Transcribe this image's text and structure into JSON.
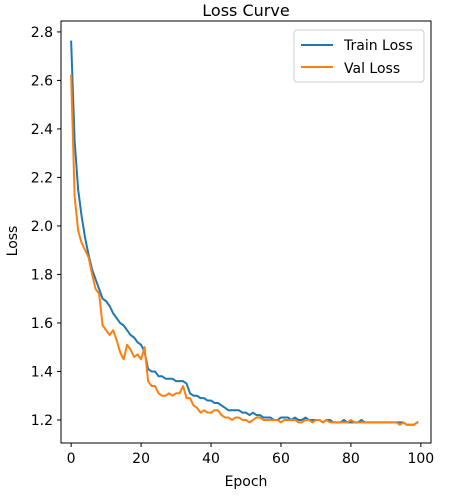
{
  "chart_data": {
    "type": "line",
    "title": "Loss Curve",
    "xlabel": "Epoch",
    "ylabel": "Loss",
    "xlim": [
      -2.9,
      102.9
    ],
    "ylim": [
      1.105,
      2.845
    ],
    "xticks": [
      0,
      20,
      40,
      60,
      80,
      100
    ],
    "yticks": [
      1.2,
      1.4,
      1.6,
      1.8,
      2.0,
      2.2,
      2.4,
      2.6,
      2.8
    ],
    "xtick_labels": [
      "0",
      "20",
      "40",
      "60",
      "80",
      "100"
    ],
    "ytick_labels": [
      "1.2",
      "1.4",
      "1.6",
      "1.8",
      "2.0",
      "2.2",
      "2.4",
      "2.6",
      "2.8"
    ],
    "grid": false,
    "legend_position": "top-right",
    "series": [
      {
        "name": "Train Loss",
        "color": "#1f77b4",
        "x": [
          0,
          1,
          2,
          3,
          4,
          5,
          6,
          7,
          8,
          9,
          10,
          11,
          12,
          13,
          14,
          15,
          16,
          17,
          18,
          19,
          20,
          21,
          22,
          23,
          24,
          25,
          26,
          27,
          28,
          29,
          30,
          31,
          32,
          33,
          34,
          35,
          36,
          37,
          38,
          39,
          40,
          41,
          42,
          43,
          44,
          45,
          46,
          47,
          48,
          49,
          50,
          51,
          52,
          53,
          54,
          55,
          56,
          57,
          58,
          59,
          60,
          61,
          62,
          63,
          64,
          65,
          66,
          67,
          68,
          69,
          70,
          71,
          72,
          73,
          74,
          75,
          76,
          77,
          78,
          79,
          80,
          81,
          82,
          83,
          84,
          85,
          86,
          87,
          88,
          89,
          90,
          91,
          92,
          93,
          94,
          95,
          96,
          97,
          98,
          99
        ],
        "values": [
          2.76,
          2.35,
          2.15,
          2.04,
          1.95,
          1.88,
          1.82,
          1.78,
          1.74,
          1.7,
          1.69,
          1.67,
          1.64,
          1.62,
          1.6,
          1.59,
          1.57,
          1.55,
          1.54,
          1.52,
          1.51,
          1.48,
          1.41,
          1.4,
          1.4,
          1.38,
          1.38,
          1.37,
          1.37,
          1.37,
          1.36,
          1.36,
          1.36,
          1.35,
          1.31,
          1.3,
          1.3,
          1.29,
          1.29,
          1.28,
          1.28,
          1.27,
          1.27,
          1.26,
          1.25,
          1.24,
          1.24,
          1.24,
          1.24,
          1.23,
          1.23,
          1.22,
          1.23,
          1.22,
          1.22,
          1.21,
          1.21,
          1.21,
          1.2,
          1.2,
          1.21,
          1.21,
          1.21,
          1.2,
          1.21,
          1.2,
          1.2,
          1.21,
          1.2,
          1.2,
          1.2,
          1.2,
          1.19,
          1.2,
          1.2,
          1.19,
          1.19,
          1.19,
          1.2,
          1.19,
          1.19,
          1.19,
          1.19,
          1.2,
          1.19,
          1.19,
          1.19,
          1.19,
          1.19,
          1.19,
          1.19,
          1.19,
          1.19,
          1.19,
          1.19,
          1.19,
          1.18,
          1.18,
          1.18,
          1.19
        ]
      },
      {
        "name": "Val Loss",
        "color": "#ff7f0e",
        "x": [
          0,
          1,
          2,
          3,
          4,
          5,
          6,
          7,
          8,
          9,
          10,
          11,
          12,
          13,
          14,
          15,
          16,
          17,
          18,
          19,
          20,
          21,
          22,
          23,
          24,
          25,
          26,
          27,
          28,
          29,
          30,
          31,
          32,
          33,
          34,
          35,
          36,
          37,
          38,
          39,
          40,
          41,
          42,
          43,
          44,
          45,
          46,
          47,
          48,
          49,
          50,
          51,
          52,
          53,
          54,
          55,
          56,
          57,
          58,
          59,
          60,
          61,
          62,
          63,
          64,
          65,
          66,
          67,
          68,
          69,
          70,
          71,
          72,
          73,
          74,
          75,
          76,
          77,
          78,
          79,
          80,
          81,
          82,
          83,
          84,
          85,
          86,
          87,
          88,
          89,
          90,
          91,
          92,
          93,
          94,
          95,
          96,
          97,
          98,
          99
        ],
        "values": [
          2.62,
          2.12,
          1.98,
          1.93,
          1.9,
          1.87,
          1.8,
          1.74,
          1.72,
          1.59,
          1.57,
          1.55,
          1.57,
          1.53,
          1.48,
          1.45,
          1.51,
          1.49,
          1.46,
          1.47,
          1.45,
          1.5,
          1.36,
          1.34,
          1.34,
          1.31,
          1.3,
          1.3,
          1.31,
          1.3,
          1.31,
          1.31,
          1.34,
          1.29,
          1.29,
          1.26,
          1.25,
          1.23,
          1.24,
          1.23,
          1.23,
          1.24,
          1.24,
          1.22,
          1.21,
          1.21,
          1.2,
          1.21,
          1.21,
          1.2,
          1.2,
          1.19,
          1.2,
          1.21,
          1.21,
          1.2,
          1.2,
          1.2,
          1.2,
          1.2,
          1.19,
          1.2,
          1.2,
          1.2,
          1.2,
          1.19,
          1.19,
          1.2,
          1.2,
          1.19,
          1.2,
          1.2,
          1.19,
          1.2,
          1.19,
          1.19,
          1.19,
          1.19,
          1.19,
          1.19,
          1.2,
          1.19,
          1.19,
          1.19,
          1.19,
          1.19,
          1.19,
          1.19,
          1.19,
          1.19,
          1.19,
          1.19,
          1.19,
          1.19,
          1.18,
          1.19,
          1.18,
          1.18,
          1.18,
          1.19
        ]
      }
    ]
  }
}
